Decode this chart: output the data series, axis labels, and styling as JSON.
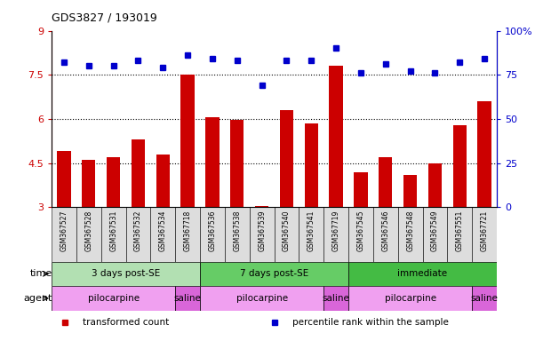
{
  "title": "GDS3827 / 193019",
  "samples": [
    "GSM367527",
    "GSM367528",
    "GSM367531",
    "GSM367532",
    "GSM367534",
    "GSM367718",
    "GSM367536",
    "GSM367538",
    "GSM367539",
    "GSM367540",
    "GSM367541",
    "GSM367719",
    "GSM367545",
    "GSM367546",
    "GSM367548",
    "GSM367549",
    "GSM367551",
    "GSM367721"
  ],
  "bar_values": [
    4.9,
    4.6,
    4.7,
    5.3,
    4.8,
    7.5,
    6.05,
    5.97,
    3.05,
    6.3,
    5.85,
    7.8,
    4.2,
    4.7,
    4.1,
    4.5,
    5.8,
    6.6
  ],
  "percentile_values": [
    82,
    80,
    80,
    83,
    79,
    86,
    84,
    83,
    69,
    83,
    83,
    90,
    76,
    81,
    77,
    76,
    82,
    84
  ],
  "bar_color": "#cc0000",
  "percentile_color": "#0000cc",
  "ylim_left": [
    3,
    9
  ],
  "ylim_right": [
    0,
    100
  ],
  "yticks_left": [
    3,
    4.5,
    6,
    7.5,
    9
  ],
  "yticks_right": [
    0,
    25,
    50,
    75,
    100
  ],
  "yticklabels_left": [
    "3",
    "4.5",
    "6",
    "7.5",
    "9"
  ],
  "yticklabels_right": [
    "0",
    "25",
    "50",
    "75",
    "100%"
  ],
  "hlines": [
    4.5,
    6.0,
    7.5
  ],
  "time_groups": [
    {
      "label": "3 days post-SE",
      "start": 0,
      "end": 5,
      "color": "#b2e0b2"
    },
    {
      "label": "7 days post-SE",
      "start": 6,
      "end": 11,
      "color": "#66cc66"
    },
    {
      "label": "immediate",
      "start": 12,
      "end": 17,
      "color": "#44bb44"
    }
  ],
  "agent_groups": [
    {
      "label": "pilocarpine",
      "start": 0,
      "end": 4,
      "color": "#f0a0f0"
    },
    {
      "label": "saline",
      "start": 5,
      "end": 5,
      "color": "#d966d9"
    },
    {
      "label": "pilocarpine",
      "start": 6,
      "end": 10,
      "color": "#f0a0f0"
    },
    {
      "label": "saline",
      "start": 11,
      "end": 11,
      "color": "#d966d9"
    },
    {
      "label": "pilocarpine",
      "start": 12,
      "end": 16,
      "color": "#f0a0f0"
    },
    {
      "label": "saline",
      "start": 17,
      "end": 17,
      "color": "#d966d9"
    }
  ],
  "legend_items": [
    {
      "label": "transformed count",
      "color": "#cc0000"
    },
    {
      "label": "percentile rank within the sample",
      "color": "#0000cc"
    }
  ],
  "tick_label_bg": "#dddddd",
  "bar_width": 0.55
}
